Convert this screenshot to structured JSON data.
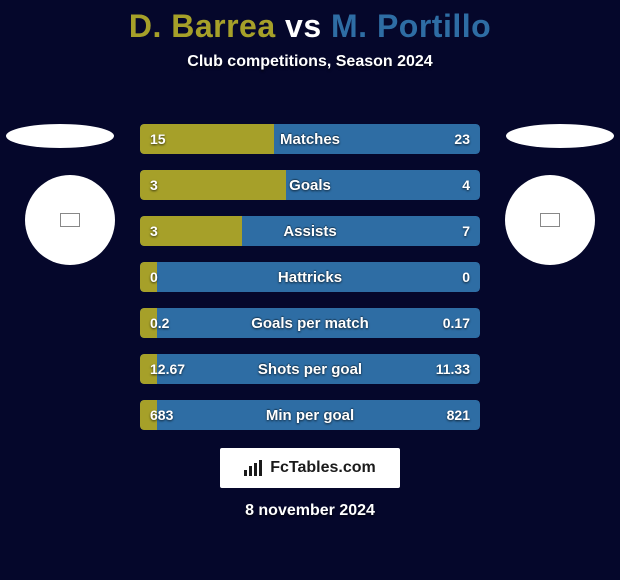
{
  "title": {
    "player1": "D. Barrea",
    "vs": " vs ",
    "player2": "M. Portillo"
  },
  "title_colors": {
    "player1": "#a6a029",
    "player2": "#2e6da4"
  },
  "subtitle": "Club competitions, Season 2024",
  "colors": {
    "background": "#05072b",
    "bar_fill": "#a6a029",
    "bar_bg": "#2e6da4",
    "text": "#ffffff"
  },
  "bars": [
    {
      "label": "Matches",
      "left": "15",
      "right": "23",
      "fill_pct": 39.5
    },
    {
      "label": "Goals",
      "left": "3",
      "right": "4",
      "fill_pct": 42.9
    },
    {
      "label": "Assists",
      "left": "3",
      "right": "7",
      "fill_pct": 30.0
    },
    {
      "label": "Hattricks",
      "left": "0",
      "right": "0",
      "fill_pct": 5.0
    },
    {
      "label": "Goals per match",
      "left": "0.2",
      "right": "0.17",
      "fill_pct": 5.0
    },
    {
      "label": "Shots per goal",
      "left": "12.67",
      "right": "11.33",
      "fill_pct": 5.0
    },
    {
      "label": "Min per goal",
      "left": "683",
      "right": "821",
      "fill_pct": 5.0
    }
  ],
  "footer": {
    "brand": "FcTables.com",
    "date": "8 november 2024"
  }
}
